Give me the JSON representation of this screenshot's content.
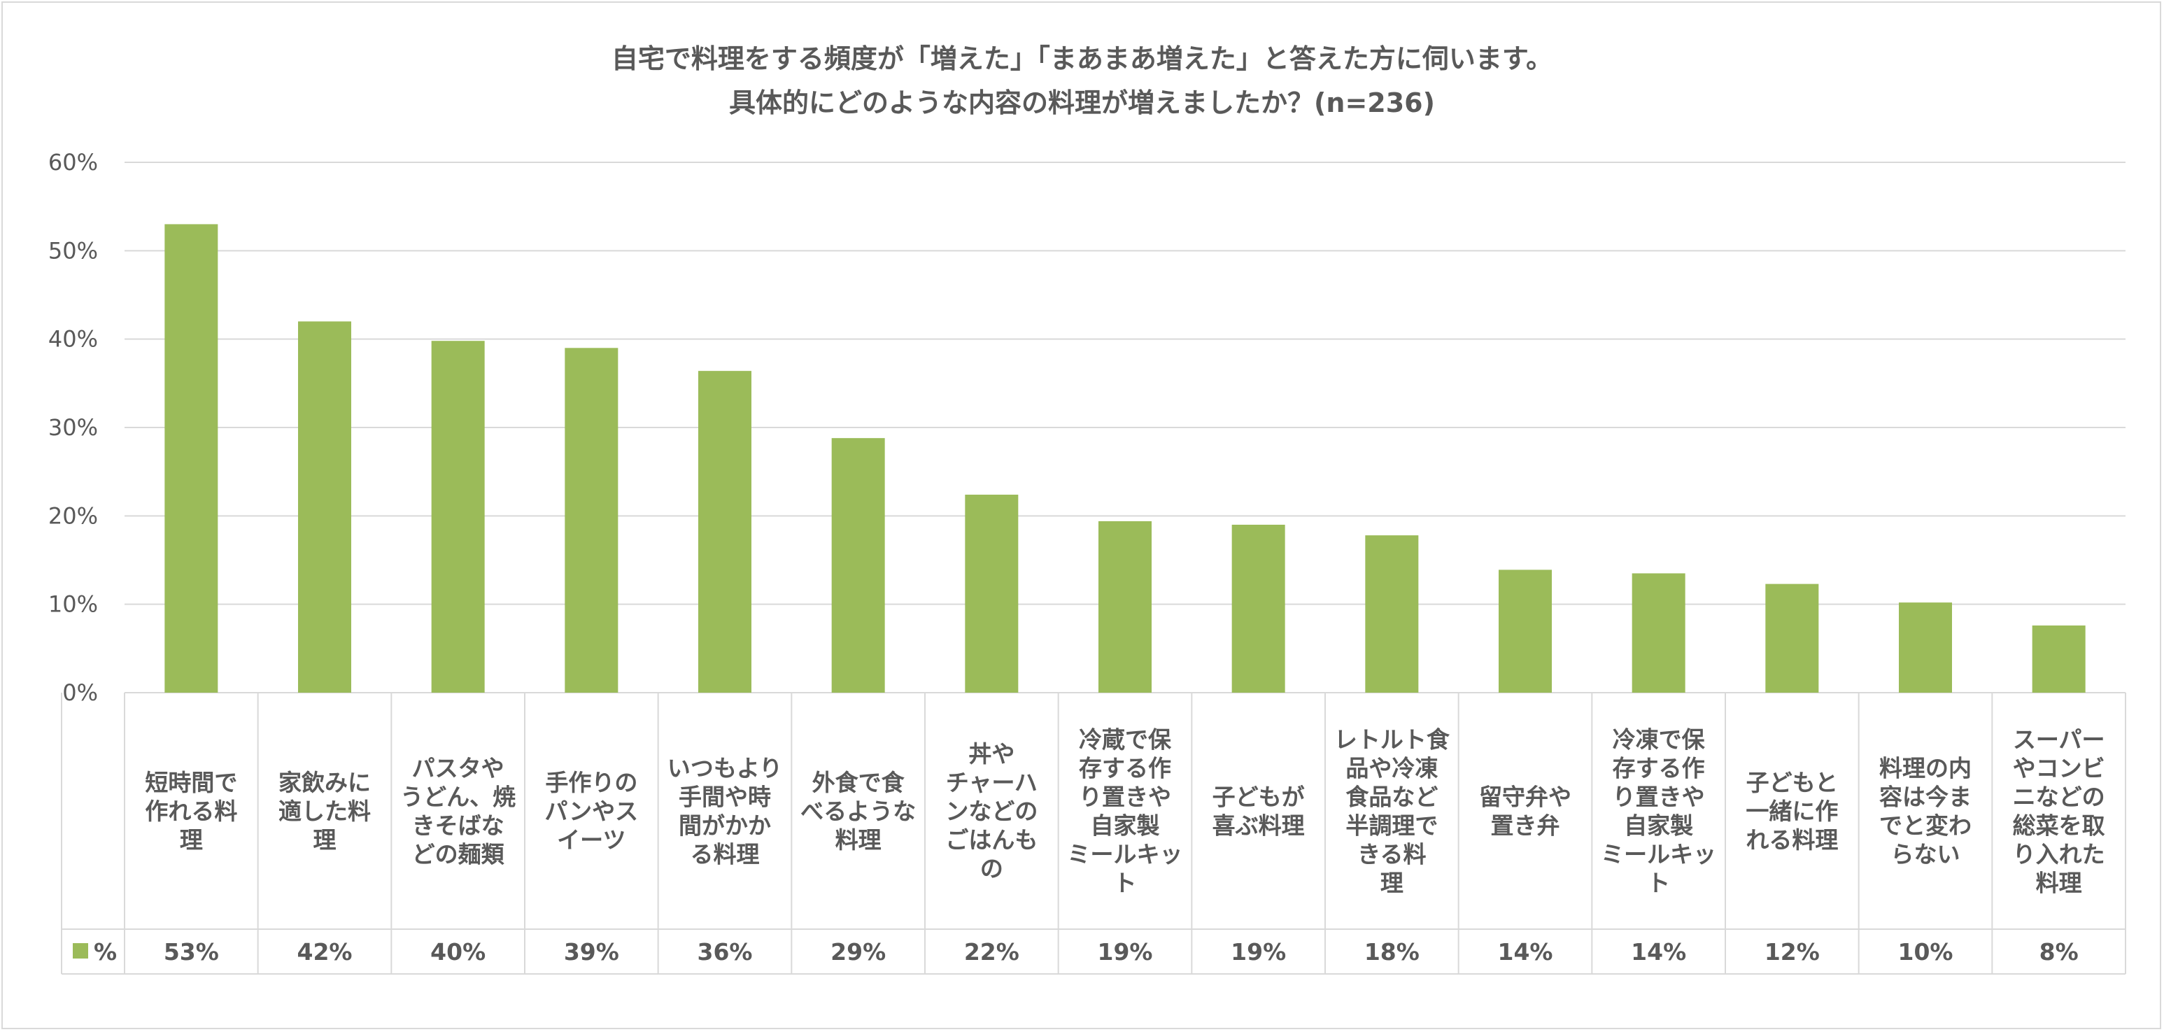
{
  "chart_data": {
    "type": "bar",
    "title_line1": "自宅で料理をする頻度が「増えた」「まあまあ増えた」と答えた方に伺います。",
    "title_line2": "具体的にどのような内容の料理が増えましたか？(n=236)",
    "ylim": [
      0,
      60
    ],
    "yticks": [
      "0%",
      "10%",
      "20%",
      "30%",
      "40%",
      "50%",
      "60%"
    ],
    "grid": true,
    "bar_color": "#9bbb59",
    "series": [
      {
        "name": "%",
        "values": [
          53,
          42,
          40,
          39,
          36,
          29,
          22,
          19,
          19,
          18,
          14,
          14,
          12,
          10,
          8
        ]
      }
    ],
    "exact_values": [
      53.0,
      42.0,
      39.8,
      39.0,
      36.4,
      28.8,
      22.4,
      19.4,
      19.0,
      17.8,
      13.9,
      13.5,
      12.3,
      10.2,
      7.6
    ],
    "value_labels": [
      "53%",
      "42%",
      "40%",
      "39%",
      "36%",
      "29%",
      "22%",
      "19%",
      "19%",
      "18%",
      "14%",
      "14%",
      "12%",
      "10%",
      "8%"
    ],
    "categories": [
      [
        "短時間で",
        "作れる料",
        "理"
      ],
      [
        "家飲みに",
        "適した料",
        "理"
      ],
      [
        "パスタや",
        "うどん、焼",
        "きそばな",
        "どの麺類"
      ],
      [
        "手作りの",
        "パンやス",
        "イーツ"
      ],
      [
        "いつもより",
        "手間や時",
        "間がかか",
        "る料理"
      ],
      [
        "外食で食",
        "べるような",
        "料理"
      ],
      [
        "丼や",
        "チャーハ",
        "ンなどの",
        "ごはんも",
        "の"
      ],
      [
        "冷蔵で保",
        "存する作",
        "り置きや",
        "自家製",
        "ミールキッ",
        "ト"
      ],
      [
        "子どもが",
        "喜ぶ料理"
      ],
      [
        "レトルト食",
        "品や冷凍",
        "食品など",
        "半調理で",
        "きる料",
        "理"
      ],
      [
        "留守弁や",
        "置き弁"
      ],
      [
        "冷凍で保",
        "存する作",
        "り置きや",
        "自家製",
        "ミールキッ",
        "ト"
      ],
      [
        "子どもと",
        "一緒に作",
        "れる料理"
      ],
      [
        "料理の内",
        "容は今ま",
        "でと変わ",
        "らない"
      ],
      [
        "スーパー",
        "やコンビ",
        "ニなどの",
        "総菜を取",
        "り入れた",
        "料理"
      ]
    ],
    "legend_label": "%"
  }
}
